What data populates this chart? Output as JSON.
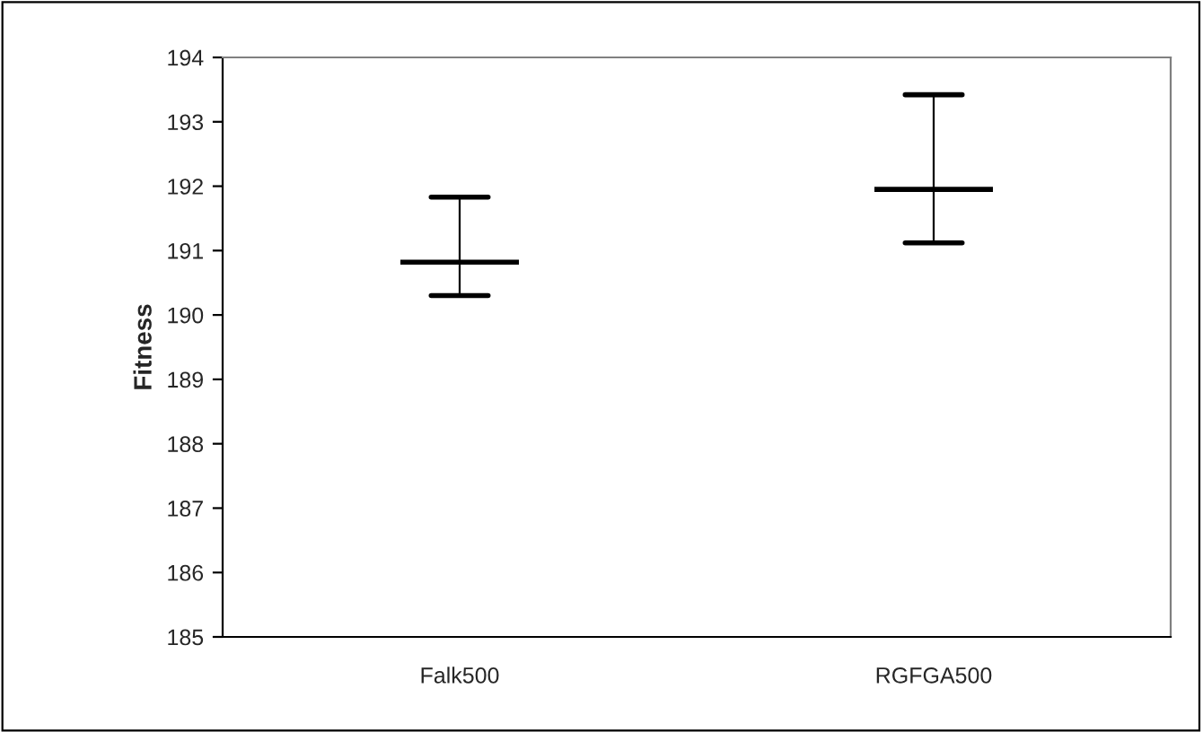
{
  "chart_data": {
    "type": "box",
    "ylabel": "Fitness",
    "categories": [
      "Falk500",
      "RGFGA500"
    ],
    "boxes": [
      {
        "low": 190.3,
        "q1": 190.82,
        "median": 190.82,
        "q3": 190.82,
        "high": 191.83
      },
      {
        "low": 191.12,
        "q1": 191.95,
        "median": 191.95,
        "q3": 191.95,
        "high": 193.42
      }
    ],
    "color": "#000000",
    "ylim": [
      185,
      194
    ],
    "yticks": [
      185,
      186,
      187,
      188,
      189,
      190,
      191,
      192,
      193,
      194
    ],
    "grid": false
  }
}
